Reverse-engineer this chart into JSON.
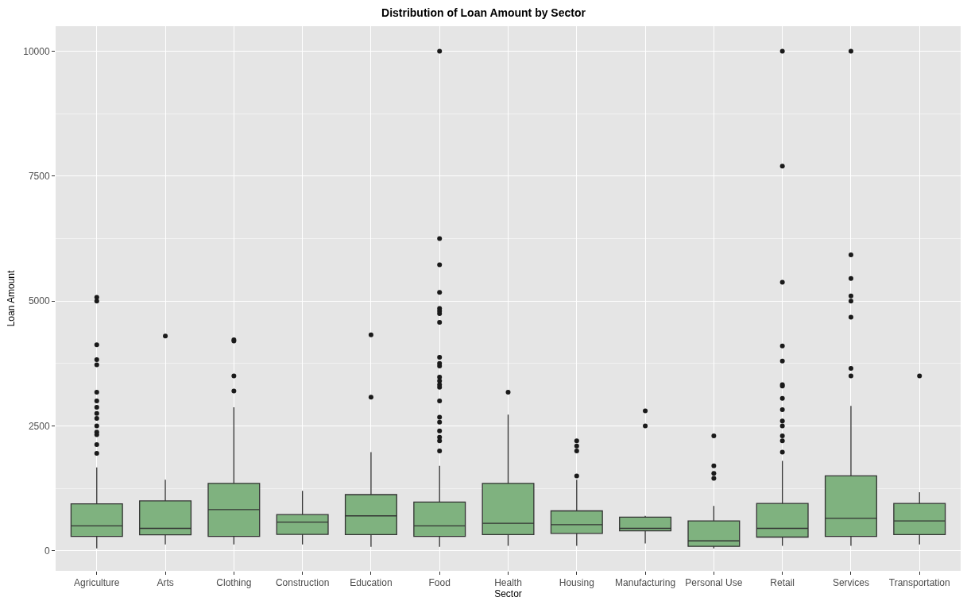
{
  "chart_data": {
    "type": "box",
    "title": "Distribution of Loan Amount by Sector",
    "xlabel": "Sector",
    "ylabel": "Loan Amount",
    "categories": [
      "Agriculture",
      "Arts",
      "Clothing",
      "Construction",
      "Education",
      "Food",
      "Health",
      "Housing",
      "Manufacturing",
      "Personal Use",
      "Retail",
      "Services",
      "Transportation"
    ],
    "color": "#7fb27f",
    "boxes": [
      {
        "low": 50,
        "q1": 290,
        "median": 500,
        "q3": 940,
        "high": 1670,
        "outliers": [
          5075,
          5000,
          4125,
          3825,
          3725,
          3175,
          3000,
          2875,
          2750,
          2650,
          2500,
          2375,
          2325,
          2125,
          1950
        ]
      },
      {
        "low": 130,
        "q1": 320,
        "median": 450,
        "q3": 1000,
        "high": 1425,
        "outliers": [
          4300
        ]
      },
      {
        "low": 130,
        "q1": 290,
        "median": 825,
        "q3": 1350,
        "high": 2875,
        "outliers": [
          4225,
          4200,
          3500,
          3200
        ]
      },
      {
        "low": 130,
        "q1": 330,
        "median": 575,
        "q3": 725,
        "high": 1200
      },
      {
        "low": 80,
        "q1": 325,
        "median": 700,
        "q3": 1125,
        "high": 1975,
        "outliers": [
          4325,
          3075
        ]
      },
      {
        "low": 80,
        "q1": 290,
        "median": 500,
        "q3": 975,
        "high": 1700,
        "outliers": [
          10000,
          6250,
          5725,
          5175,
          4850,
          4800,
          4750,
          4575,
          3875,
          3750,
          3700,
          3475,
          3400,
          3325,
          3275,
          3000,
          2675,
          2575,
          2400,
          2275,
          2200,
          2000
        ]
      },
      {
        "low": 100,
        "q1": 325,
        "median": 550,
        "q3": 1350,
        "high": 2725,
        "outliers": [
          3175
        ]
      },
      {
        "low": 100,
        "q1": 350,
        "median": 525,
        "q3": 800,
        "high": 1425,
        "outliers": [
          2200,
          2100,
          2000,
          1500
        ]
      },
      {
        "low": 150,
        "q1": 400,
        "median": 450,
        "q3": 675,
        "high": 700,
        "outliers": [
          2800,
          2500
        ]
      },
      {
        "low": 50,
        "q1": 90,
        "median": 200,
        "q3": 600,
        "high": 900,
        "outliers": [
          2300,
          1700,
          1550,
          1450
        ]
      },
      {
        "low": 100,
        "q1": 275,
        "median": 450,
        "q3": 950,
        "high": 1800,
        "outliers": [
          10000,
          7700,
          5375,
          4100,
          3800,
          3325,
          3300,
          3050,
          2825,
          2600,
          2500,
          2300,
          2200,
          1975
        ]
      },
      {
        "low": 100,
        "q1": 290,
        "median": 650,
        "q3": 1500,
        "high": 2900,
        "outliers": [
          10000,
          5925,
          5450,
          5100,
          5000,
          4675,
          3650,
          3500
        ]
      },
      {
        "low": 130,
        "q1": 325,
        "median": 600,
        "q3": 950,
        "high": 1175,
        "outliers": [
          3500
        ]
      }
    ],
    "ylim": [
      -400,
      10500
    ],
    "yticks": [
      0,
      {
        "value": 1250,
        "label": null
      },
      2500,
      {
        "value": 3750,
        "label": null
      },
      5000,
      {
        "value": 6250,
        "label": null
      },
      7500,
      {
        "value": 8750,
        "label": null
      },
      10000
    ],
    "grid": true
  }
}
